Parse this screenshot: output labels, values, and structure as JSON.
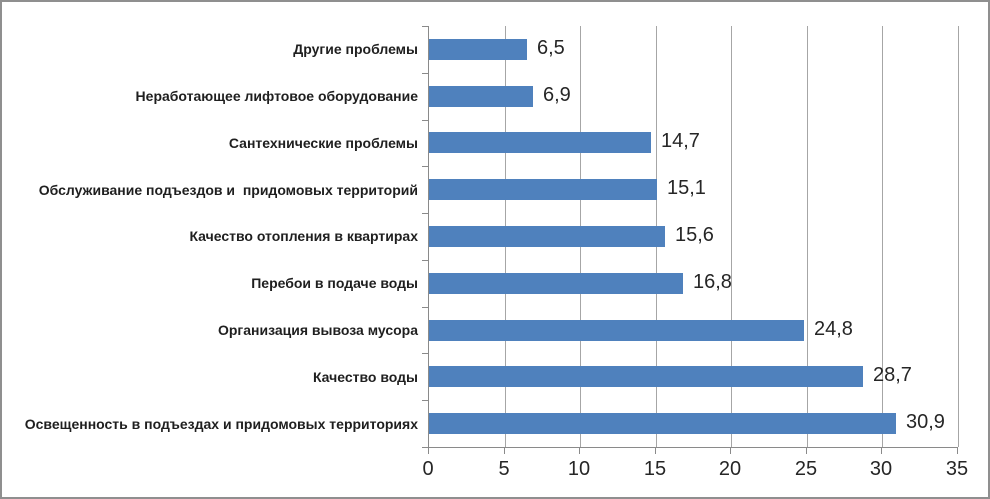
{
  "chart_data": {
    "type": "bar",
    "orientation": "horizontal",
    "title": "",
    "xlabel": "",
    "ylabel": "",
    "categories": [
      "Другие проблемы",
      "Неработающее лифтовое оборудование",
      "Сантехнические проблемы",
      "Обслуживание подъездов и  придомовых территорий",
      "Качество отопления в квартирах",
      "Перебои в подаче воды",
      "Организация вывоза мусора",
      "Качество воды",
      "Освещенность в подъездах и придомовых территориях"
    ],
    "values": [
      6.5,
      6.9,
      14.7,
      15.1,
      15.6,
      16.8,
      24.8,
      28.7,
      30.9
    ],
    "value_labels": [
      "6,5",
      "6,9",
      "14,7",
      "15,1",
      "15,6",
      "16,8",
      "24,8",
      "28,7",
      "30,9"
    ],
    "xlim": [
      0,
      35
    ],
    "xticks": [
      0,
      5,
      10,
      15,
      20,
      25,
      30,
      35
    ],
    "xtick_labels": [
      "0",
      "5",
      "10",
      "15",
      "20",
      "25",
      "30",
      "35"
    ],
    "grid": "vertical-only",
    "legend": "none",
    "colors": {
      "bar_fill": "#4f81bd",
      "gridline": "#a6a6a6",
      "axis_line": "#8a8a8a",
      "text": "#262626",
      "frame_border": "#8f8f8f",
      "background": "#ffffff"
    }
  }
}
